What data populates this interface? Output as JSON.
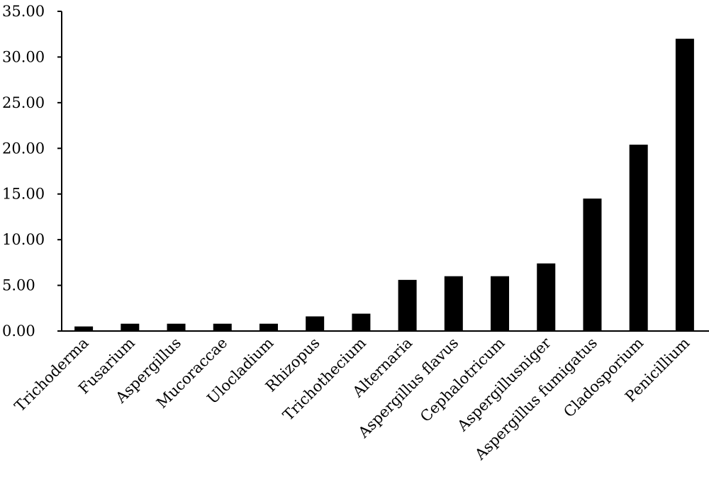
{
  "chart_data": {
    "type": "bar",
    "title": "",
    "xlabel": "",
    "ylabel": "",
    "categories": [
      "Trichoderma",
      "Fusarium",
      "Aspergillus",
      "Mucoraccae",
      "Ulocladium",
      "Rhizopus",
      "Trichothecium",
      "Alternaria",
      "Aspergillus flavus",
      "Cephalotricum",
      "Aspergillusniger",
      "Aspergillus fumigatus",
      "Cladosporium",
      "Penicillium"
    ],
    "values": [
      0.5,
      0.8,
      0.8,
      0.8,
      0.8,
      1.6,
      1.9,
      5.6,
      6.0,
      6.0,
      7.4,
      14.5,
      20.4,
      32.0
    ],
    "ylim": [
      0,
      35
    ],
    "yticks": [
      "0.00",
      "5.00",
      "10.00",
      "15.00",
      "20.00",
      "25.00",
      "30.00",
      "35.00"
    ],
    "ytick_values": [
      0,
      5,
      10,
      15,
      20,
      25,
      30,
      35
    ],
    "bar_color": "#000000",
    "grid": false,
    "legend": "none"
  }
}
